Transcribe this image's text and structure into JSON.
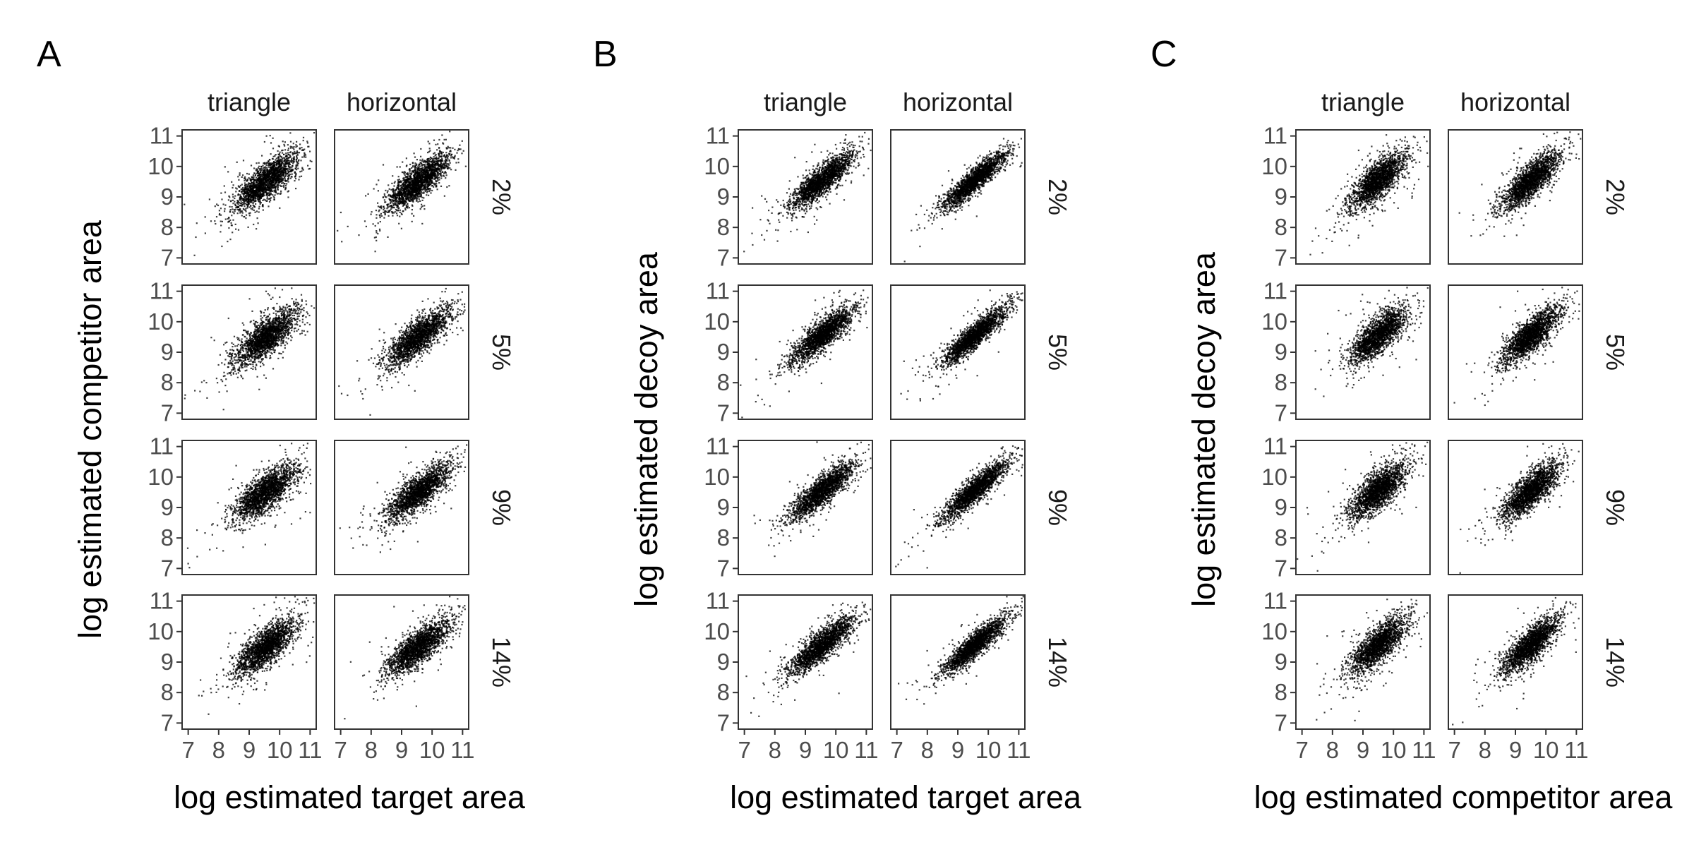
{
  "figure": {
    "description": "",
    "col_labels": [
      "triangle",
      "horizontal"
    ],
    "row_labels": [
      "2%",
      "5%",
      "9%",
      "14%"
    ]
  },
  "chart_data": [
    {
      "panel": "A",
      "type": "scatter",
      "xlabel": "log estimated target area",
      "ylabel": "log estimated competitor area",
      "xlim": [
        6.8,
        11.2
      ],
      "ylim": [
        6.8,
        11.2
      ],
      "xticks": [
        7,
        8,
        9,
        10,
        11
      ],
      "yticks": [
        7,
        8,
        9,
        10,
        11
      ],
      "facets": {
        "cols": [
          "triangle",
          "horizontal"
        ],
        "rows": [
          "2%",
          "5%",
          "9%",
          "14%"
        ]
      },
      "distribution": {
        "center_x": 9.55,
        "center_y": 9.5,
        "sd_x": 0.5,
        "sd_y": 0.45,
        "correlation": 0.75,
        "points_per_facet": 2000
      }
    },
    {
      "panel": "B",
      "type": "scatter",
      "xlabel": "log estimated target area",
      "ylabel": "log estimated decoy area",
      "xlim": [
        6.8,
        11.2
      ],
      "ylim": [
        6.8,
        11.2
      ],
      "xticks": [
        7,
        8,
        9,
        10,
        11
      ],
      "yticks": [
        7,
        8,
        9,
        10,
        11
      ],
      "facets": {
        "cols": [
          "triangle",
          "horizontal"
        ],
        "rows": [
          "2%",
          "5%",
          "9%",
          "14%"
        ]
      },
      "distribution": {
        "center_x": 9.55,
        "center_y": 9.55,
        "sd_x": 0.5,
        "sd_y": 0.45,
        "correlation": 0.85,
        "points_per_facet": 2000
      }
    },
    {
      "panel": "C",
      "type": "scatter",
      "xlabel": "log estimated competitor area",
      "ylabel": "log estimated decoy area",
      "xlim": [
        6.8,
        11.2
      ],
      "ylim": [
        6.8,
        11.2
      ],
      "xticks": [
        7,
        8,
        9,
        10,
        11
      ],
      "yticks": [
        7,
        8,
        9,
        10,
        11
      ],
      "facets": {
        "cols": [
          "triangle",
          "horizontal"
        ],
        "rows": [
          "2%",
          "5%",
          "9%",
          "14%"
        ]
      },
      "distribution": {
        "center_x": 9.5,
        "center_y": 9.55,
        "sd_x": 0.45,
        "sd_y": 0.45,
        "correlation": 0.75,
        "points_per_facet": 2000
      }
    }
  ]
}
